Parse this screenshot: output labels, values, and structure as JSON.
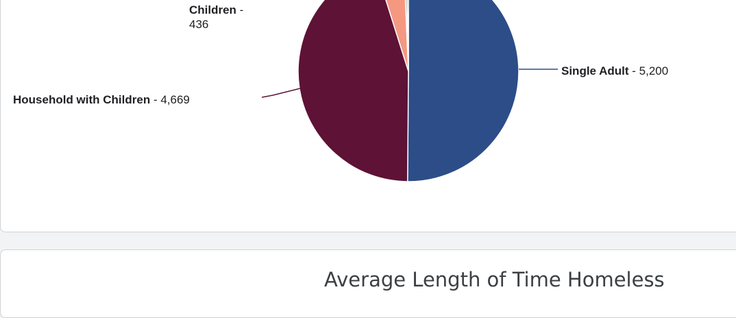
{
  "chart_data": {
    "type": "pie",
    "slices": [
      {
        "label": "Single Adult",
        "value": 5200,
        "value_text": "5,200",
        "color": "#2c4d88"
      },
      {
        "label": "Household with Children",
        "value": 4669,
        "value_text": "4,669",
        "color": "#5e1236"
      },
      {
        "label": "Children",
        "value": 436,
        "value_text": "436",
        "color": "#f59882"
      },
      {
        "label": "",
        "value": 40,
        "value_text": "",
        "color": "#9aa3a6"
      },
      {
        "label": "",
        "value": 30,
        "value_text": "",
        "color": "#2d6f5e"
      }
    ]
  },
  "sections": {
    "next_title": "Average Length of Time Homeless"
  }
}
